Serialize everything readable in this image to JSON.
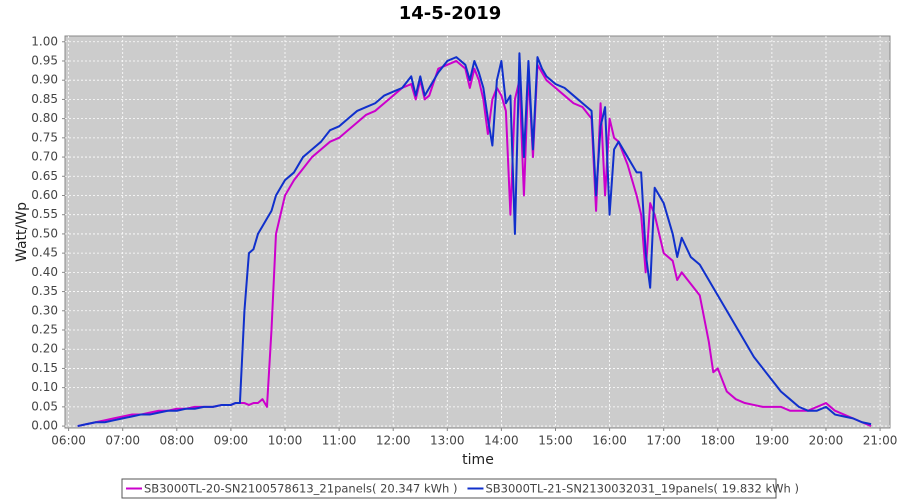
{
  "chart_data": {
    "type": "line",
    "title": "14-5-2019",
    "x_label": "time",
    "y_label": "Watt/Wp",
    "x": [
      "06:10",
      "06:20",
      "06:30",
      "06:40",
      "06:50",
      "07:00",
      "07:10",
      "07:20",
      "07:30",
      "07:40",
      "07:50",
      "08:00",
      "08:10",
      "08:20",
      "08:30",
      "08:40",
      "08:50",
      "09:00",
      "09:05",
      "09:10",
      "09:15",
      "09:20",
      "09:25",
      "09:30",
      "09:35",
      "09:40",
      "09:45",
      "09:50",
      "09:55",
      "10:00",
      "10:10",
      "10:20",
      "10:30",
      "10:40",
      "10:50",
      "11:00",
      "11:10",
      "11:20",
      "11:30",
      "11:40",
      "11:50",
      "12:00",
      "12:10",
      "12:20",
      "12:25",
      "12:30",
      "12:35",
      "12:40",
      "12:50",
      "13:00",
      "13:10",
      "13:20",
      "13:25",
      "13:30",
      "13:35",
      "13:40",
      "13:45",
      "13:50",
      "13:55",
      "14:00",
      "14:05",
      "14:10",
      "14:15",
      "14:20",
      "14:25",
      "14:30",
      "14:35",
      "14:40",
      "14:45",
      "14:50",
      "15:00",
      "15:10",
      "15:20",
      "15:30",
      "15:40",
      "15:45",
      "15:50",
      "15:55",
      "16:00",
      "16:05",
      "16:10",
      "16:20",
      "16:30",
      "16:35",
      "16:40",
      "16:45",
      "16:50",
      "17:00",
      "17:10",
      "17:15",
      "17:20",
      "17:30",
      "17:40",
      "17:50",
      "17:55",
      "18:00",
      "18:10",
      "18:20",
      "18:30",
      "18:40",
      "18:50",
      "19:00",
      "19:10",
      "19:20",
      "19:30",
      "19:40",
      "19:50",
      "20:00",
      "20:10",
      "20:20",
      "20:30",
      "20:40",
      "20:50"
    ],
    "series": [
      {
        "name": "SB3000TL-20-SN2100578613_21panels( 20.347 kWh )",
        "color": "#cc00cc",
        "values": [
          0,
          0.005,
          0.01,
          0.015,
          0.02,
          0.025,
          0.03,
          0.03,
          0.035,
          0.04,
          0.04,
          0.045,
          0.045,
          0.05,
          0.05,
          0.05,
          0.055,
          0.055,
          0.06,
          0.06,
          0.06,
          0.055,
          0.06,
          0.06,
          0.07,
          0.05,
          0.25,
          0.5,
          0.55,
          0.6,
          0.64,
          0.67,
          0.7,
          0.72,
          0.74,
          0.75,
          0.77,
          0.79,
          0.81,
          0.82,
          0.84,
          0.86,
          0.88,
          0.89,
          0.85,
          0.9,
          0.85,
          0.86,
          0.93,
          0.94,
          0.95,
          0.93,
          0.88,
          0.93,
          0.9,
          0.85,
          0.76,
          0.85,
          0.88,
          0.86,
          0.82,
          0.55,
          0.85,
          0.9,
          0.6,
          0.92,
          0.7,
          0.94,
          0.92,
          0.9,
          0.88,
          0.86,
          0.84,
          0.83,
          0.8,
          0.56,
          0.84,
          0.6,
          0.8,
          0.75,
          0.74,
          0.68,
          0.6,
          0.55,
          0.4,
          0.58,
          0.55,
          0.45,
          0.43,
          0.38,
          0.4,
          0.37,
          0.34,
          0.22,
          0.14,
          0.15,
          0.09,
          0.07,
          0.06,
          0.055,
          0.05,
          0.05,
          0.05,
          0.04,
          0.04,
          0.04,
          0.05,
          0.06,
          0.04,
          0.03,
          0.02,
          0.01,
          0
        ]
      },
      {
        "name": "SB3000TL-21-SN2130032031_19panels( 19.832 kWh )",
        "color": "#1030cc",
        "values": [
          0,
          0.005,
          0.01,
          0.01,
          0.015,
          0.02,
          0.025,
          0.03,
          0.03,
          0.035,
          0.04,
          0.04,
          0.045,
          0.045,
          0.05,
          0.05,
          0.055,
          0.055,
          0.06,
          0.06,
          0.3,
          0.45,
          0.46,
          0.5,
          0.52,
          0.54,
          0.56,
          0.6,
          0.62,
          0.64,
          0.66,
          0.7,
          0.72,
          0.74,
          0.77,
          0.78,
          0.8,
          0.82,
          0.83,
          0.84,
          0.86,
          0.87,
          0.88,
          0.91,
          0.86,
          0.91,
          0.86,
          0.88,
          0.92,
          0.95,
          0.96,
          0.94,
          0.9,
          0.95,
          0.92,
          0.88,
          0.8,
          0.73,
          0.9,
          0.95,
          0.84,
          0.86,
          0.5,
          0.97,
          0.7,
          0.95,
          0.72,
          0.96,
          0.93,
          0.91,
          0.89,
          0.88,
          0.86,
          0.84,
          0.82,
          0.6,
          0.78,
          0.83,
          0.55,
          0.72,
          0.74,
          0.7,
          0.66,
          0.66,
          0.45,
          0.36,
          0.62,
          0.58,
          0.5,
          0.44,
          0.49,
          0.44,
          0.42,
          0.38,
          0.36,
          0.34,
          0.3,
          0.26,
          0.22,
          0.18,
          0.15,
          0.12,
          0.09,
          0.07,
          0.05,
          0.04,
          0.04,
          0.05,
          0.03,
          0.025,
          0.02,
          0.01,
          0.005
        ]
      }
    ],
    "xlim": [
      "05:56",
      "21:11"
    ],
    "xticks": [
      "06:00",
      "07:00",
      "08:00",
      "09:00",
      "10:00",
      "11:00",
      "12:00",
      "13:00",
      "14:00",
      "15:00",
      "16:00",
      "17:00",
      "18:00",
      "19:00",
      "20:00",
      "21:00"
    ],
    "ylim": [
      -0.005,
      1.015
    ],
    "yticks": [
      {
        "value": 0,
        "label": "0.00"
      },
      {
        "value": 0.05,
        "label": "0.05"
      },
      {
        "value": 0.1,
        "label": "0.10"
      },
      {
        "value": 0.15,
        "label": "0.15"
      },
      {
        "value": 0.2,
        "label": "0.20"
      },
      {
        "value": 0.25,
        "label": "0.25"
      },
      {
        "value": 0.3,
        "label": "0.30"
      },
      {
        "value": 0.35,
        "label": "0.35"
      },
      {
        "value": 0.4,
        "label": "0.40"
      },
      {
        "value": 0.45,
        "label": "0.45"
      },
      {
        "value": 0.5,
        "label": "0.50"
      },
      {
        "value": 0.55,
        "label": "0.55"
      },
      {
        "value": 0.6,
        "label": "0.60"
      },
      {
        "value": 0.65,
        "label": "0.65"
      },
      {
        "value": 0.7,
        "label": "0.70"
      },
      {
        "value": 0.75,
        "label": "0.75"
      },
      {
        "value": 0.8,
        "label": "0.80"
      },
      {
        "value": 0.85,
        "label": "0.85"
      },
      {
        "value": 0.9,
        "label": "0.90"
      },
      {
        "value": 0.95,
        "label": "0.95"
      },
      {
        "value": 1,
        "label": "1.00"
      }
    ],
    "grid": true,
    "legend": "bottom"
  }
}
